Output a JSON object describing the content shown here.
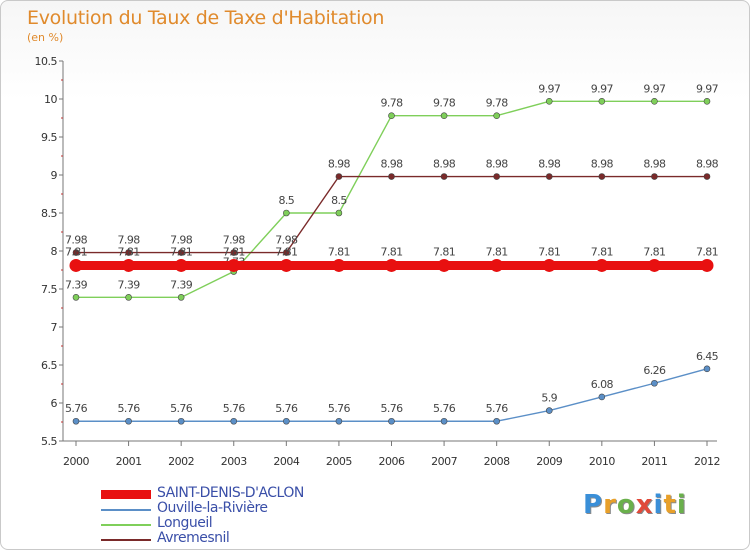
{
  "header": {
    "title": "Evolution du Taux de Taxe d'Habitation",
    "subtitle": "(en %)"
  },
  "logo": {
    "text": "Proxiti",
    "letters": [
      "P",
      "r",
      "o",
      "x",
      "i",
      "t",
      "i"
    ],
    "colors": [
      "#3a8fd8",
      "#e8a02a",
      "#6ab04c",
      "#e04a3a",
      "#3a8fd8",
      "#e8a02a",
      "#6ab04c"
    ]
  },
  "chart_data": {
    "type": "line",
    "title": "Evolution du Taux de Taxe d'Habitation",
    "ylabel": "(en %)",
    "xlabel": "",
    "x": [
      "2000",
      "2001",
      "2002",
      "2003",
      "2004",
      "2005",
      "2006",
      "2007",
      "2008",
      "2009",
      "2010",
      "2011",
      "2012"
    ],
    "ylim": [
      5.5,
      10.5
    ],
    "yticks": [
      "5.5",
      "6",
      "6.5",
      "7",
      "7.5",
      "8",
      "8.5",
      "9",
      "9.5",
      "10",
      "10.5"
    ],
    "grid": false,
    "series": [
      {
        "name": "SAINT-DENIS-D'ACLON",
        "color": "#e81010",
        "stroke": "thick",
        "labels_position": "above",
        "values": [
          7.81,
          7.81,
          7.81,
          7.81,
          7.81,
          7.81,
          7.81,
          7.81,
          7.81,
          7.81,
          7.81,
          7.81,
          7.81
        ],
        "labels": [
          "7.81",
          "7.81",
          "7.81",
          "7.81",
          "7.81",
          "7.81",
          "7.81",
          "7.81",
          "7.81",
          "7.81",
          "7.81",
          "7.81",
          "7.81"
        ]
      },
      {
        "name": "Ouville-la-Rivière",
        "color": "#5b8fc7",
        "stroke": "thin",
        "labels_position": "above",
        "values": [
          5.76,
          5.76,
          5.76,
          5.76,
          5.76,
          5.76,
          5.76,
          5.76,
          5.76,
          5.9,
          6.08,
          6.26,
          6.45
        ],
        "labels": [
          "5.76",
          "5.76",
          "5.76",
          "5.76",
          "5.76",
          "5.76",
          "5.76",
          "5.76",
          "5.76",
          "5.9",
          "6.08",
          "6.26",
          "6.45"
        ]
      },
      {
        "name": "Longueil",
        "color": "#7fcf5a",
        "stroke": "thin",
        "labels_position": "mixed",
        "values": [
          7.39,
          7.39,
          7.39,
          7.73,
          8.5,
          8.5,
          9.78,
          9.78,
          9.78,
          9.97,
          9.97,
          9.97,
          9.97
        ],
        "labels": [
          "7.39",
          "7.39",
          "7.39",
          "7.73",
          "8.5",
          "8.5",
          "9.78",
          "9.78",
          "9.78",
          "9.97",
          "9.97",
          "9.97",
          "9.97"
        ]
      },
      {
        "name": "Avremesnil",
        "color": "#7a2a2a",
        "stroke": "thin",
        "labels_position": "above",
        "values": [
          7.98,
          7.98,
          7.98,
          7.98,
          7.98,
          8.98,
          8.98,
          8.98,
          8.98,
          8.98,
          8.98,
          8.98,
          8.98
        ],
        "labels": [
          "7.98",
          "7.98",
          "7.98",
          "7.98",
          "7.98",
          "8.98",
          "8.98",
          "8.98",
          "8.98",
          "8.98",
          "8.98",
          "8.98",
          "8.98"
        ]
      }
    ]
  }
}
